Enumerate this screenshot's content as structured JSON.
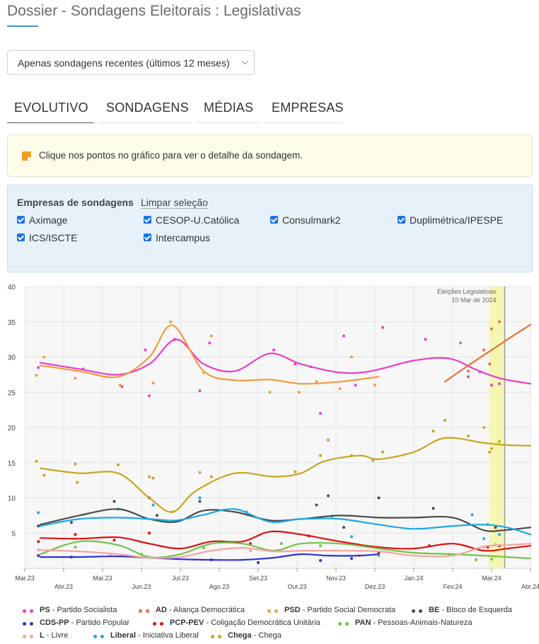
{
  "page": {
    "title": "Dossier - Sondagens Eleitorais : Legislativas"
  },
  "period_select": {
    "value": "Apenas sondagens recentes (últimos 12 meses)"
  },
  "tabs": [
    {
      "label": "EVOLUTIVO",
      "active": true
    },
    {
      "label": "SONDAGENS",
      "active": false
    },
    {
      "label": "MÉDIAS",
      "active": false
    },
    {
      "label": "EMPRESAS",
      "active": false
    }
  ],
  "info": {
    "text": "Clique nos pontos no gráfico para ver o detalhe da sondagem."
  },
  "filters": {
    "title": "Empresas de sondagens",
    "clear_label": "Limpar seleção",
    "companies": [
      {
        "label": "Aximage",
        "checked": true
      },
      {
        "label": "CESOP-U.Católica",
        "checked": true
      },
      {
        "label": "Consulmark2",
        "checked": true
      },
      {
        "label": "Duplimétrica/IPESPE",
        "checked": true
      },
      {
        "label": "ICS/ISCTE",
        "checked": true
      },
      {
        "label": "Intercampus",
        "checked": true
      }
    ]
  },
  "chart_data": {
    "type": "line",
    "x_tick_labels": [
      "Mar.23",
      "Abr.23",
      "Mai.23",
      "Jun.23",
      "Jul.23",
      "Ago.23",
      "Set.23",
      "Out.23",
      "Nov.23",
      "Dez.23",
      "Jan.24",
      "Fev.24",
      "Mar.24",
      "Abr.24"
    ],
    "xlim": [
      0,
      13
    ],
    "ylim": [
      0,
      40
    ],
    "y_ticks": [
      40,
      35,
      30,
      25,
      20,
      15,
      10,
      5
    ],
    "grid": true,
    "annotation": {
      "label_line1": "Eleições Legislativas",
      "label_line2": "10 Mar de 2024",
      "x": 12.3
    },
    "series": [
      {
        "name": "PS",
        "full": "Partido Socialista",
        "color": "#e83fc6",
        "x": [
          0.4,
          1.4,
          2.4,
          3.2,
          3.9,
          4.6,
          5.4,
          6.3,
          7.1,
          8.1,
          8.9,
          10.0,
          10.9,
          11.6,
          12.2,
          13.0
        ],
        "y": [
          29.2,
          28.3,
          27.5,
          29.0,
          32.5,
          29.0,
          28.0,
          30.5,
          29.0,
          27.8,
          28.0,
          29.5,
          29.8,
          28.2,
          27.0,
          26.2
        ]
      },
      {
        "name": "AD",
        "full": "Aliança Democrática",
        "color": "#e8703a",
        "x": [
          10.8,
          11.4,
          12.0,
          12.6,
          13.0
        ],
        "y": [
          26.5,
          28.8,
          31.0,
          33.2,
          34.6
        ]
      },
      {
        "name": "PSD",
        "full": "Partido Social Democrata",
        "color": "#f59a3d",
        "x": [
          0.4,
          1.4,
          2.4,
          3.2,
          3.8,
          4.6,
          5.4,
          6.3,
          7.1,
          8.1,
          9.1
        ],
        "y": [
          28.8,
          28.0,
          27.2,
          30.0,
          34.5,
          28.0,
          26.7,
          26.8,
          26.2,
          26.5,
          27.2
        ]
      },
      {
        "name": "BE",
        "full": "Bloco de Esquerda",
        "color": "#4a4a4a",
        "x": [
          0.4,
          1.4,
          2.4,
          3.2,
          3.9,
          4.6,
          5.4,
          6.3,
          7.1,
          8.1,
          9.1,
          10.0,
          11.0,
          11.8,
          12.3,
          13.0
        ],
        "y": [
          6.2,
          7.5,
          8.4,
          7.0,
          6.6,
          8.2,
          8.0,
          6.8,
          7.0,
          7.5,
          7.2,
          7.2,
          7.2,
          5.4,
          5.4,
          5.8
        ]
      },
      {
        "name": "CDS-PP",
        "full": "Partido Popular",
        "color": "#3030d8",
        "x": [
          0.4,
          1.4,
          2.4,
          3.2,
          4.0,
          4.8,
          5.6,
          6.4,
          7.1,
          7.8,
          8.6,
          9.1
        ],
        "y": [
          1.6,
          1.6,
          1.7,
          1.5,
          1.3,
          1.2,
          1.2,
          1.5,
          2.0,
          1.8,
          1.8,
          2.0
        ]
      },
      {
        "name": "PCP-PEV",
        "full": "Coligação Democrática Unitária",
        "color": "#e01010",
        "x": [
          0.4,
          1.4,
          2.4,
          3.2,
          4.0,
          4.8,
          5.6,
          6.3,
          7.1,
          8.1,
          9.1,
          10.0,
          11.0,
          11.8,
          12.4,
          13.0
        ],
        "y": [
          4.3,
          4.2,
          4.4,
          3.5,
          2.8,
          3.8,
          3.8,
          5.2,
          4.8,
          3.8,
          3.0,
          2.8,
          3.5,
          2.5,
          2.8,
          3.2
        ]
      },
      {
        "name": "PAN",
        "full": "Pessoas-Animais-Natureza",
        "color": "#72c24a",
        "x": [
          0.4,
          1.4,
          2.4,
          3.2,
          4.0,
          4.8,
          5.6,
          6.4,
          7.1,
          8.1,
          9.1,
          10.0,
          11.0,
          11.8,
          12.4,
          13.0
        ],
        "y": [
          2.0,
          3.8,
          3.3,
          1.6,
          2.0,
          3.5,
          3.5,
          2.5,
          3.5,
          3.5,
          2.8,
          2.2,
          2.0,
          1.8,
          1.6,
          1.4
        ]
      },
      {
        "name": "L",
        "full": "Livre",
        "color": "#f4a3a3",
        "x": [
          0.4,
          1.4,
          2.4,
          3.2,
          4.0,
          4.8,
          5.6,
          6.4,
          7.1,
          8.1,
          9.1,
          10.0,
          11.0,
          11.8,
          12.4,
          13.0
        ],
        "y": [
          2.6,
          2.4,
          2.0,
          1.5,
          1.6,
          2.5,
          2.9,
          2.4,
          2.5,
          2.5,
          2.4,
          1.8,
          1.8,
          3.1,
          3.3,
          3.5
        ]
      },
      {
        "name": "Liberal",
        "full": "Iniciativa Liberal",
        "color": "#1aa8e6",
        "x": [
          0.4,
          1.4,
          2.4,
          3.2,
          3.9,
          4.6,
          5.4,
          6.3,
          7.1,
          8.1,
          9.1,
          10.0,
          11.0,
          11.8,
          12.4,
          13.0
        ],
        "y": [
          6.0,
          7.0,
          7.2,
          7.0,
          6.8,
          7.6,
          8.4,
          6.6,
          7.0,
          7.0,
          6.2,
          5.6,
          6.0,
          6.2,
          5.8,
          4.8
        ]
      },
      {
        "name": "Chega",
        "full": "Chega",
        "color": "#c9a520",
        "x": [
          0.4,
          1.4,
          2.4,
          3.2,
          3.8,
          4.4,
          5.4,
          6.4,
          7.1,
          7.7,
          8.6,
          9.1,
          10.0,
          10.8,
          11.8,
          12.4,
          13.0
        ],
        "y": [
          14.2,
          13.5,
          13.5,
          10.0,
          8.0,
          11.0,
          13.5,
          13.0,
          13.5,
          15.2,
          16.0,
          15.5,
          16.5,
          18.5,
          17.8,
          17.5,
          17.4
        ]
      }
    ],
    "points": [
      {
        "s": 0,
        "x": 0.35,
        "y": 28.5
      },
      {
        "s": 0,
        "x": 1.5,
        "y": 28.3
      },
      {
        "s": 0,
        "x": 2.5,
        "y": 25.8
      },
      {
        "s": 0,
        "x": 3.1,
        "y": 31.0
      },
      {
        "s": 0,
        "x": 3.2,
        "y": 24.5
      },
      {
        "s": 0,
        "x": 3.85,
        "y": 32.5
      },
      {
        "s": 0,
        "x": 4.5,
        "y": 25.2
      },
      {
        "s": 0,
        "x": 4.75,
        "y": 32.0
      },
      {
        "s": 0,
        "x": 6.4,
        "y": 31.0
      },
      {
        "s": 0,
        "x": 6.95,
        "y": 29.0
      },
      {
        "s": 0,
        "x": 7.35,
        "y": 28.6
      },
      {
        "s": 0,
        "x": 8.2,
        "y": 33.0
      },
      {
        "s": 0,
        "x": 8.5,
        "y": 26.0
      },
      {
        "s": 0,
        "x": 9.2,
        "y": 34.2
      },
      {
        "s": 0,
        "x": 10.3,
        "y": 32.5
      },
      {
        "s": 0,
        "x": 11.4,
        "y": 27.2
      },
      {
        "s": 0,
        "x": 11.7,
        "y": 27.9
      },
      {
        "s": 0,
        "x": 12.0,
        "y": 26.0
      },
      {
        "s": 0,
        "x": 12.2,
        "y": 26.2
      },
      {
        "s": 0,
        "x": 7.6,
        "y": 22.0
      },
      {
        "s": 1,
        "x": 11.2,
        "y": 32.0
      },
      {
        "s": 1,
        "x": 11.8,
        "y": 31.0
      },
      {
        "s": 1,
        "x": 12.0,
        "y": 34.0
      },
      {
        "s": 1,
        "x": 12.2,
        "y": 35.0
      },
      {
        "s": 1,
        "x": 11.4,
        "y": 28.0
      },
      {
        "s": 1,
        "x": 11.95,
        "y": 29.0
      },
      {
        "s": 2,
        "x": 0.3,
        "y": 27.4
      },
      {
        "s": 2,
        "x": 0.5,
        "y": 30.0
      },
      {
        "s": 2,
        "x": 1.3,
        "y": 27.0
      },
      {
        "s": 2,
        "x": 2.45,
        "y": 26.0
      },
      {
        "s": 2,
        "x": 3.3,
        "y": 26.3
      },
      {
        "s": 2,
        "x": 3.75,
        "y": 35.0
      },
      {
        "s": 2,
        "x": 4.8,
        "y": 33.0
      },
      {
        "s": 2,
        "x": 4.6,
        "y": 27.8
      },
      {
        "s": 2,
        "x": 6.3,
        "y": 25.0
      },
      {
        "s": 2,
        "x": 7.05,
        "y": 25.0
      },
      {
        "s": 2,
        "x": 7.5,
        "y": 26.5
      },
      {
        "s": 2,
        "x": 8.1,
        "y": 25.5
      },
      {
        "s": 2,
        "x": 8.4,
        "y": 30.0
      },
      {
        "s": 2,
        "x": 9.0,
        "y": 26.0
      },
      {
        "s": 3,
        "x": 0.35,
        "y": 6.0
      },
      {
        "s": 3,
        "x": 1.2,
        "y": 6.5
      },
      {
        "s": 3,
        "x": 2.3,
        "y": 9.5
      },
      {
        "s": 3,
        "x": 3.2,
        "y": 10.0
      },
      {
        "s": 3,
        "x": 3.4,
        "y": 7.5
      },
      {
        "s": 3,
        "x": 4.5,
        "y": 9.5
      },
      {
        "s": 3,
        "x": 7.8,
        "y": 10.3
      },
      {
        "s": 3,
        "x": 7.5,
        "y": 9.0
      },
      {
        "s": 3,
        "x": 8.2,
        "y": 5.8
      },
      {
        "s": 3,
        "x": 9.1,
        "y": 10.0
      },
      {
        "s": 3,
        "x": 10.5,
        "y": 8.5
      },
      {
        "s": 3,
        "x": 12.1,
        "y": 5.8
      },
      {
        "s": 4,
        "x": 0.35,
        "y": 1.8
      },
      {
        "s": 4,
        "x": 1.2,
        "y": 1.6
      },
      {
        "s": 4,
        "x": 4.8,
        "y": 1.2
      },
      {
        "s": 4,
        "x": 6.0,
        "y": 0.8
      },
      {
        "s": 4,
        "x": 7.6,
        "y": 1.1
      },
      {
        "s": 4,
        "x": 8.4,
        "y": 1.4
      },
      {
        "s": 5,
        "x": 0.35,
        "y": 3.8
      },
      {
        "s": 5,
        "x": 1.3,
        "y": 4.8
      },
      {
        "s": 5,
        "x": 2.3,
        "y": 4.0
      },
      {
        "s": 5,
        "x": 3.2,
        "y": 5.0
      },
      {
        "s": 5,
        "x": 5.8,
        "y": 3.5
      },
      {
        "s": 5,
        "x": 6.5,
        "y": 2.5
      },
      {
        "s": 5,
        "x": 7.3,
        "y": 4.6
      },
      {
        "s": 5,
        "x": 9.1,
        "y": 2.2
      },
      {
        "s": 5,
        "x": 10.4,
        "y": 3.2
      },
      {
        "s": 5,
        "x": 11.9,
        "y": 3.0
      },
      {
        "s": 5,
        "x": 12.2,
        "y": 3.2
      },
      {
        "s": 6,
        "x": 1.3,
        "y": 3.0
      },
      {
        "s": 6,
        "x": 3.0,
        "y": 2.0
      },
      {
        "s": 6,
        "x": 4.6,
        "y": 2.9
      },
      {
        "s": 6,
        "x": 6.6,
        "y": 3.5
      },
      {
        "s": 6,
        "x": 7.6,
        "y": 3.2
      },
      {
        "s": 6,
        "x": 9.1,
        "y": 1.8
      },
      {
        "s": 6,
        "x": 11.6,
        "y": 1.2
      },
      {
        "s": 6,
        "x": 12.0,
        "y": 1.3
      },
      {
        "s": 7,
        "x": 0.35,
        "y": 2.6
      },
      {
        "s": 7,
        "x": 2.2,
        "y": 1.9
      },
      {
        "s": 7,
        "x": 5.8,
        "y": 2.5
      },
      {
        "s": 7,
        "x": 8.6,
        "y": 1.8
      },
      {
        "s": 7,
        "x": 10.9,
        "y": 2.0
      },
      {
        "s": 7,
        "x": 11.8,
        "y": 3.0
      },
      {
        "s": 7,
        "x": 12.1,
        "y": 3.4
      },
      {
        "s": 8,
        "x": 0.35,
        "y": 7.9
      },
      {
        "s": 8,
        "x": 2.4,
        "y": 8.4
      },
      {
        "s": 8,
        "x": 3.3,
        "y": 9.0
      },
      {
        "s": 8,
        "x": 4.5,
        "y": 10.0
      },
      {
        "s": 8,
        "x": 5.7,
        "y": 8.0
      },
      {
        "s": 8,
        "x": 7.9,
        "y": 7.4
      },
      {
        "s": 8,
        "x": 8.4,
        "y": 4.5
      },
      {
        "s": 8,
        "x": 11.5,
        "y": 7.6
      },
      {
        "s": 8,
        "x": 11.9,
        "y": 6.2
      },
      {
        "s": 8,
        "x": 12.2,
        "y": 4.8
      },
      {
        "s": 8,
        "x": 11.8,
        "y": 4.2
      },
      {
        "s": 9,
        "x": 0.3,
        "y": 15.2
      },
      {
        "s": 9,
        "x": 0.5,
        "y": 13.2
      },
      {
        "s": 9,
        "x": 1.3,
        "y": 14.8
      },
      {
        "s": 9,
        "x": 1.35,
        "y": 12.2
      },
      {
        "s": 9,
        "x": 2.4,
        "y": 14.7
      },
      {
        "s": 9,
        "x": 3.2,
        "y": 13.0
      },
      {
        "s": 9,
        "x": 3.3,
        "y": 12.8
      },
      {
        "s": 9,
        "x": 3.8,
        "y": 8.0
      },
      {
        "s": 9,
        "x": 4.5,
        "y": 13.6
      },
      {
        "s": 9,
        "x": 4.8,
        "y": 13.0
      },
      {
        "s": 9,
        "x": 6.95,
        "y": 13.7
      },
      {
        "s": 9,
        "x": 7.6,
        "y": 16.0
      },
      {
        "s": 9,
        "x": 7.8,
        "y": 18.2
      },
      {
        "s": 9,
        "x": 8.4,
        "y": 16.0
      },
      {
        "s": 9,
        "x": 8.95,
        "y": 15.3
      },
      {
        "s": 9,
        "x": 9.2,
        "y": 16.5
      },
      {
        "s": 9,
        "x": 10.5,
        "y": 19.5
      },
      {
        "s": 9,
        "x": 10.8,
        "y": 21.0
      },
      {
        "s": 9,
        "x": 11.4,
        "y": 18.8
      },
      {
        "s": 9,
        "x": 11.8,
        "y": 20.0
      },
      {
        "s": 9,
        "x": 12.0,
        "y": 17.0
      },
      {
        "s": 9,
        "x": 12.2,
        "y": 18.0
      },
      {
        "s": 9,
        "x": 11.95,
        "y": 16.5
      }
    ]
  },
  "legend": [
    {
      "abbr": "PS",
      "full": "Partido Socialista",
      "color": "#e83fc6"
    },
    {
      "abbr": "AD",
      "full": "Aliança Democrática",
      "color": "#e8703a"
    },
    {
      "abbr": "PSD",
      "full": "Partido Social Democrata",
      "color": "#f59a3d"
    },
    {
      "abbr": "BE",
      "full": "Bloco de Esquerda",
      "color": "#4a4a4a"
    },
    {
      "abbr": "CDS-PP",
      "full": "Partido Popular",
      "color": "#3030d8"
    },
    {
      "abbr": "PCP-PEV",
      "full": "Coligação Democrática Unitária",
      "color": "#e01010"
    },
    {
      "abbr": "PAN",
      "full": "Pessoas-Animais-Natureza",
      "color": "#72c24a"
    },
    {
      "abbr": "L",
      "full": "Livre",
      "color": "#f4a3a3"
    },
    {
      "abbr": "Liberal",
      "full": "Iniciativa Liberal",
      "color": "#1aa8e6"
    },
    {
      "abbr": "Chega",
      "full": "Chega",
      "color": "#c9a520"
    }
  ]
}
